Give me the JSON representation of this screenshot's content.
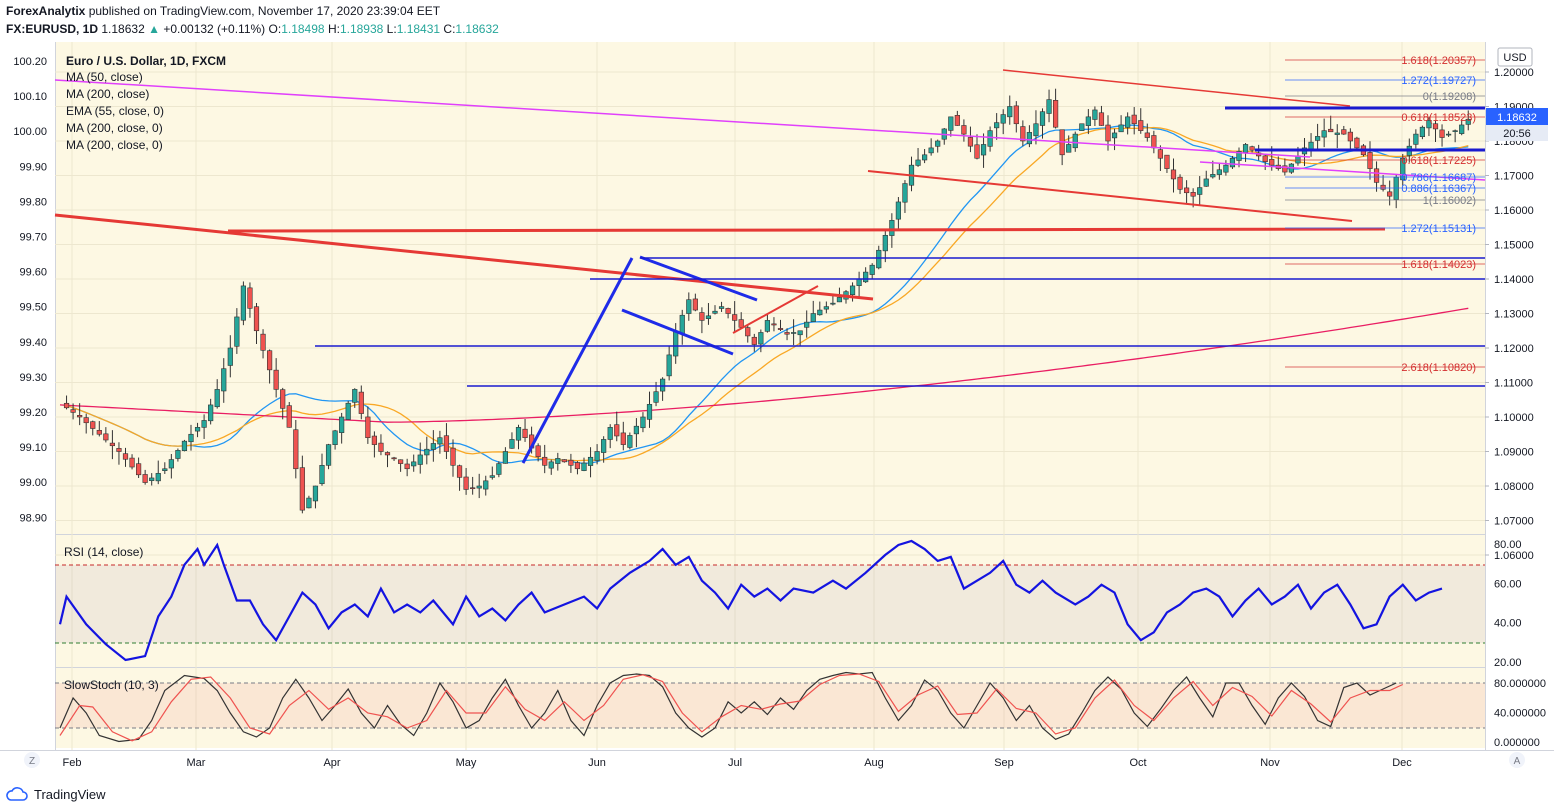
{
  "header": {
    "publisher": "ForexAnalytix",
    "published_text": "published on TradingView.com, November 17, 2020 23:39:04 EET",
    "symbol": "FX:EURUSD, 1D",
    "last": "1.18632",
    "change": "+0.00132 (+0.11%)",
    "o_label": "O:",
    "o": "1.18498",
    "h_label": "H:",
    "h": "1.18938",
    "l_label": "L:",
    "l": "1.18431",
    "c_label": "C:",
    "c": "1.18632"
  },
  "legend": {
    "title": "Euro / U.S. Dollar, 1D, FXCM",
    "studies": [
      "MA (50, close)",
      "MA (200, close)",
      "EMA (55, close, 0)",
      "MA (200, close, 0)",
      "MA (200, close, 0)"
    ],
    "rsi": "RSI (14, close)",
    "stoch": "SlowStoch (10, 3)"
  },
  "price_axis": {
    "currency": "USD",
    "labels": [
      "1.20000",
      "1.19000",
      "1.18000",
      "1.17000",
      "1.16000",
      "1.15000",
      "1.14000",
      "1.13000",
      "1.12000",
      "1.11000",
      "1.10000",
      "1.09000",
      "1.08000",
      "1.07000",
      "1.06000"
    ],
    "current_price": "1.18632",
    "countdown": "20:56"
  },
  "left_axis": {
    "labels": [
      "100.20",
      "100.10",
      "100.00",
      "99.90",
      "99.80",
      "99.70",
      "99.60",
      "99.50",
      "99.40",
      "99.30",
      "99.20",
      "99.10",
      "99.00",
      "98.90"
    ]
  },
  "rsi_axis": [
    "80.00",
    "60.00",
    "40.00",
    "20.00"
  ],
  "stoch_axis": [
    "80.000000",
    "40.000000",
    "0.000000"
  ],
  "time_axis": [
    "Feb",
    "Mar",
    "Apr",
    "May",
    "Jun",
    "Jul",
    "Aug",
    "Sep",
    "Oct",
    "Nov",
    "Dec"
  ],
  "fib_labels": [
    {
      "text": "1.618(1.20357)",
      "color": "#d32f2f"
    },
    {
      "text": "1.272(1.19727)",
      "color": "#2962ff"
    },
    {
      "text": "0(1.19208)",
      "color": "#787b86"
    },
    {
      "text": "0.618(1.18523)",
      "color": "#d32f2f"
    },
    {
      "text": "0.618(1.17225)",
      "color": "#d32f2f"
    },
    {
      "text": "0.786(1.16687)",
      "color": "#2962ff"
    },
    {
      "text": "0.886(1.16367)",
      "color": "#2962ff"
    },
    {
      "text": "1(1.16002)",
      "color": "#787b86"
    },
    {
      "text": "1.272(1.15131)",
      "color": "#2962ff"
    },
    {
      "text": "1.618(1.14023)",
      "color": "#d32f2f"
    },
    {
      "text": "2.618(1.10820)",
      "color": "#d32f2f"
    }
  ],
  "axis_buttons": {
    "left": "Z",
    "right": "A"
  },
  "footer": {
    "brand": "TradingView"
  },
  "colors": {
    "bull": "#26a69a",
    "bear": "#ef5350",
    "background": "#fdf8e3",
    "ma50": "#2196f3",
    "ema55": "#f9a825",
    "ma200": "#e91e63",
    "rsi": "#1414e0",
    "stoch_k": "#333333",
    "stoch_d": "#ef5350"
  },
  "chart_data": {
    "type": "candlestick",
    "title": "Euro / U.S. Dollar, 1D, FXCM",
    "ylim": [
      1.055,
      1.2075
    ],
    "x_months": [
      "Feb",
      "Mar",
      "Apr",
      "May",
      "Jun",
      "Jul",
      "Aug",
      "Sep",
      "Oct",
      "Nov",
      "Dec"
    ],
    "close_anchors": [
      [
        0,
        1.104
      ],
      [
        3,
        1.1
      ],
      [
        6,
        1.095
      ],
      [
        9,
        1.09
      ],
      [
        13,
        1.081
      ],
      [
        16,
        1.085
      ],
      [
        19,
        1.093
      ],
      [
        22,
        1.099
      ],
      [
        24,
        1.108
      ],
      [
        26,
        1.12
      ],
      [
        28,
        1.138
      ],
      [
        30,
        1.125
      ],
      [
        33,
        1.108
      ],
      [
        35,
        1.097
      ],
      [
        37,
        1.073
      ],
      [
        39,
        1.08
      ],
      [
        41,
        1.092
      ],
      [
        43,
        1.1
      ],
      [
        45,
        1.108
      ],
      [
        47,
        1.094
      ],
      [
        49,
        1.09
      ],
      [
        51,
        1.088
      ],
      [
        53,
        1.085
      ],
      [
        55,
        1.089
      ],
      [
        58,
        1.094
      ],
      [
        60,
        1.086
      ],
      [
        62,
        1.079
      ],
      [
        64,
        1.08
      ],
      [
        66,
        1.083
      ],
      [
        68,
        1.09
      ],
      [
        70,
        1.097
      ],
      [
        72,
        1.091
      ],
      [
        74,
        1.086
      ],
      [
        76,
        1.088
      ],
      [
        79,
        1.085
      ],
      [
        82,
        1.09
      ],
      [
        84,
        1.097
      ],
      [
        86,
        1.092
      ],
      [
        89,
        1.1
      ],
      [
        92,
        1.111
      ],
      [
        94,
        1.125
      ],
      [
        96,
        1.134
      ],
      [
        98,
        1.128
      ],
      [
        101,
        1.132
      ],
      [
        104,
        1.126
      ],
      [
        106,
        1.121
      ],
      [
        108,
        1.128
      ],
      [
        111,
        1.124
      ],
      [
        113,
        1.125
      ],
      [
        115,
        1.13
      ],
      [
        118,
        1.133
      ],
      [
        121,
        1.138
      ],
      [
        124,
        1.144
      ],
      [
        127,
        1.157
      ],
      [
        130,
        1.173
      ],
      [
        132,
        1.176
      ],
      [
        134,
        1.18
      ],
      [
        136,
        1.187
      ],
      [
        138,
        1.182
      ],
      [
        140,
        1.175
      ],
      [
        142,
        1.183
      ],
      [
        145,
        1.19
      ],
      [
        147,
        1.18
      ],
      [
        149,
        1.185
      ],
      [
        151,
        1.192
      ],
      [
        153,
        1.176
      ],
      [
        156,
        1.185
      ],
      [
        158,
        1.189
      ],
      [
        160,
        1.18
      ],
      [
        163,
        1.187
      ],
      [
        166,
        1.181
      ],
      [
        169,
        1.172
      ],
      [
        171,
        1.166
      ],
      [
        173,
        1.164
      ],
      [
        175,
        1.169
      ],
      [
        178,
        1.173
      ],
      [
        181,
        1.179
      ],
      [
        184,
        1.174
      ],
      [
        187,
        1.171
      ],
      [
        190,
        1.178
      ],
      [
        193,
        1.183
      ],
      [
        196,
        1.182
      ],
      [
        199,
        1.176
      ],
      [
        201,
        1.168
      ],
      [
        203,
        1.164
      ],
      [
        205,
        1.175
      ],
      [
        207,
        1.182
      ],
      [
        209,
        1.186
      ],
      [
        211,
        1.181
      ],
      [
        213,
        1.183
      ],
      [
        215,
        1.1863
      ]
    ],
    "rsi": [
      [
        0,
        40
      ],
      [
        1,
        54
      ],
      [
        4,
        40
      ],
      [
        7,
        30
      ],
      [
        10,
        22
      ],
      [
        13,
        24
      ],
      [
        15,
        44
      ],
      [
        17,
        54
      ],
      [
        19,
        70
      ],
      [
        21,
        78
      ],
      [
        22,
        70
      ],
      [
        24,
        80
      ],
      [
        25,
        70
      ],
      [
        27,
        52
      ],
      [
        29,
        52
      ],
      [
        31,
        40
      ],
      [
        33,
        32
      ],
      [
        35,
        44
      ],
      [
        37,
        56
      ],
      [
        39,
        50
      ],
      [
        41,
        38
      ],
      [
        43,
        46
      ],
      [
        45,
        50
      ],
      [
        47,
        44
      ],
      [
        49,
        58
      ],
      [
        51,
        46
      ],
      [
        53,
        50
      ],
      [
        55,
        46
      ],
      [
        57,
        52
      ],
      [
        60,
        40
      ],
      [
        62,
        54
      ],
      [
        64,
        44
      ],
      [
        66,
        48
      ],
      [
        68,
        42
      ],
      [
        70,
        50
      ],
      [
        72,
        56
      ],
      [
        74,
        46
      ],
      [
        77,
        50
      ],
      [
        80,
        54
      ],
      [
        82,
        48
      ],
      [
        84,
        58
      ],
      [
        87,
        66
      ],
      [
        90,
        72
      ],
      [
        92,
        78
      ],
      [
        94,
        70
      ],
      [
        96,
        74
      ],
      [
        98,
        62
      ],
      [
        100,
        56
      ],
      [
        102,
        48
      ],
      [
        104,
        60
      ],
      [
        106,
        54
      ],
      [
        108,
        58
      ],
      [
        110,
        52
      ],
      [
        112,
        58
      ],
      [
        115,
        56
      ],
      [
        118,
        62
      ],
      [
        120,
        58
      ],
      [
        123,
        66
      ],
      [
        126,
        75
      ],
      [
        128,
        80
      ],
      [
        130,
        82
      ],
      [
        132,
        78
      ],
      [
        134,
        72
      ],
      [
        136,
        74
      ],
      [
        138,
        58
      ],
      [
        140,
        62
      ],
      [
        142,
        66
      ],
      [
        144,
        72
      ],
      [
        146,
        60
      ],
      [
        148,
        56
      ],
      [
        150,
        62
      ],
      [
        152,
        56
      ],
      [
        155,
        50
      ],
      [
        157,
        54
      ],
      [
        159,
        60
      ],
      [
        161,
        56
      ],
      [
        163,
        40
      ],
      [
        165,
        32
      ],
      [
        167,
        36
      ],
      [
        169,
        46
      ],
      [
        171,
        50
      ],
      [
        173,
        56
      ],
      [
        175,
        58
      ],
      [
        177,
        54
      ],
      [
        179,
        44
      ],
      [
        181,
        52
      ],
      [
        183,
        58
      ],
      [
        185,
        50
      ],
      [
        187,
        54
      ],
      [
        189,
        60
      ],
      [
        191,
        48
      ],
      [
        193,
        56
      ],
      [
        195,
        60
      ],
      [
        197,
        50
      ],
      [
        199,
        38
      ],
      [
        201,
        40
      ],
      [
        203,
        54
      ],
      [
        205,
        60
      ],
      [
        207,
        52
      ],
      [
        209,
        56
      ],
      [
        211,
        58
      ]
    ],
    "stoch_k": [
      [
        0,
        20
      ],
      [
        2,
        60
      ],
      [
        4,
        40
      ],
      [
        6,
        10
      ],
      [
        9,
        2
      ],
      [
        12,
        5
      ],
      [
        14,
        30
      ],
      [
        16,
        70
      ],
      [
        19,
        90
      ],
      [
        22,
        86
      ],
      [
        24,
        70
      ],
      [
        26,
        40
      ],
      [
        28,
        15
      ],
      [
        30,
        8
      ],
      [
        32,
        20
      ],
      [
        34,
        60
      ],
      [
        36,
        85
      ],
      [
        38,
        60
      ],
      [
        40,
        30
      ],
      [
        42,
        50
      ],
      [
        44,
        72
      ],
      [
        46,
        40
      ],
      [
        48,
        20
      ],
      [
        50,
        50
      ],
      [
        52,
        25
      ],
      [
        54,
        10
      ],
      [
        56,
        40
      ],
      [
        58,
        80
      ],
      [
        60,
        55
      ],
      [
        62,
        20
      ],
      [
        64,
        30
      ],
      [
        66,
        60
      ],
      [
        68,
        85
      ],
      [
        70,
        50
      ],
      [
        72,
        20
      ],
      [
        74,
        40
      ],
      [
        76,
        70
      ],
      [
        78,
        30
      ],
      [
        80,
        10
      ],
      [
        82,
        50
      ],
      [
        84,
        80
      ],
      [
        86,
        90
      ],
      [
        88,
        92
      ],
      [
        90,
        90
      ],
      [
        92,
        75
      ],
      [
        94,
        40
      ],
      [
        96,
        20
      ],
      [
        98,
        8
      ],
      [
        100,
        20
      ],
      [
        102,
        55
      ],
      [
        104,
        40
      ],
      [
        106,
        55
      ],
      [
        108,
        38
      ],
      [
        110,
        60
      ],
      [
        112,
        45
      ],
      [
        114,
        70
      ],
      [
        116,
        85
      ],
      [
        118,
        90
      ],
      [
        120,
        94
      ],
      [
        122,
        92
      ],
      [
        124,
        94
      ],
      [
        126,
        60
      ],
      [
        128,
        30
      ],
      [
        130,
        50
      ],
      [
        132,
        84
      ],
      [
        134,
        70
      ],
      [
        136,
        40
      ],
      [
        138,
        20
      ],
      [
        140,
        50
      ],
      [
        142,
        80
      ],
      [
        144,
        60
      ],
      [
        146,
        30
      ],
      [
        148,
        50
      ],
      [
        150,
        20
      ],
      [
        152,
        5
      ],
      [
        154,
        12
      ],
      [
        156,
        40
      ],
      [
        158,
        70
      ],
      [
        160,
        88
      ],
      [
        162,
        72
      ],
      [
        164,
        40
      ],
      [
        166,
        22
      ],
      [
        168,
        45
      ],
      [
        170,
        70
      ],
      [
        172,
        88
      ],
      [
        174,
        60
      ],
      [
        176,
        35
      ],
      [
        178,
        80
      ],
      [
        180,
        80
      ],
      [
        182,
        50
      ],
      [
        184,
        25
      ],
      [
        186,
        60
      ],
      [
        188,
        80
      ],
      [
        190,
        62
      ],
      [
        192,
        30
      ],
      [
        194,
        22
      ],
      [
        196,
        74
      ],
      [
        198,
        80
      ],
      [
        200,
        64
      ],
      [
        202,
        72
      ],
      [
        204,
        80
      ]
    ],
    "stoch_d": [
      [
        0,
        10
      ],
      [
        3,
        50
      ],
      [
        5,
        48
      ],
      [
        8,
        15
      ],
      [
        11,
        3
      ],
      [
        14,
        15
      ],
      [
        17,
        55
      ],
      [
        20,
        85
      ],
      [
        23,
        88
      ],
      [
        26,
        60
      ],
      [
        29,
        20
      ],
      [
        32,
        12
      ],
      [
        35,
        50
      ],
      [
        38,
        70
      ],
      [
        41,
        45
      ],
      [
        44,
        60
      ],
      [
        47,
        40
      ],
      [
        50,
        35
      ],
      [
        53,
        20
      ],
      [
        56,
        30
      ],
      [
        59,
        70
      ],
      [
        62,
        40
      ],
      [
        65,
        40
      ],
      [
        68,
        75
      ],
      [
        71,
        45
      ],
      [
        74,
        30
      ],
      [
        77,
        55
      ],
      [
        80,
        30
      ],
      [
        83,
        50
      ],
      [
        86,
        85
      ],
      [
        89,
        91
      ],
      [
        92,
        82
      ],
      [
        95,
        40
      ],
      [
        98,
        15
      ],
      [
        101,
        35
      ],
      [
        104,
        50
      ],
      [
        107,
        45
      ],
      [
        110,
        52
      ],
      [
        113,
        56
      ],
      [
        116,
        78
      ],
      [
        119,
        90
      ],
      [
        122,
        92
      ],
      [
        125,
        82
      ],
      [
        128,
        42
      ],
      [
        131,
        64
      ],
      [
        134,
        76
      ],
      [
        137,
        38
      ],
      [
        140,
        40
      ],
      [
        143,
        72
      ],
      [
        146,
        46
      ],
      [
        149,
        40
      ],
      [
        152,
        12
      ],
      [
        155,
        20
      ],
      [
        158,
        60
      ],
      [
        161,
        84
      ],
      [
        164,
        50
      ],
      [
        167,
        30
      ],
      [
        170,
        60
      ],
      [
        173,
        82
      ],
      [
        176,
        50
      ],
      [
        179,
        74
      ],
      [
        182,
        62
      ],
      [
        185,
        36
      ],
      [
        188,
        70
      ],
      [
        191,
        52
      ],
      [
        194,
        28
      ],
      [
        197,
        60
      ],
      [
        200,
        70
      ],
      [
        203,
        70
      ],
      [
        205,
        78
      ]
    ]
  }
}
